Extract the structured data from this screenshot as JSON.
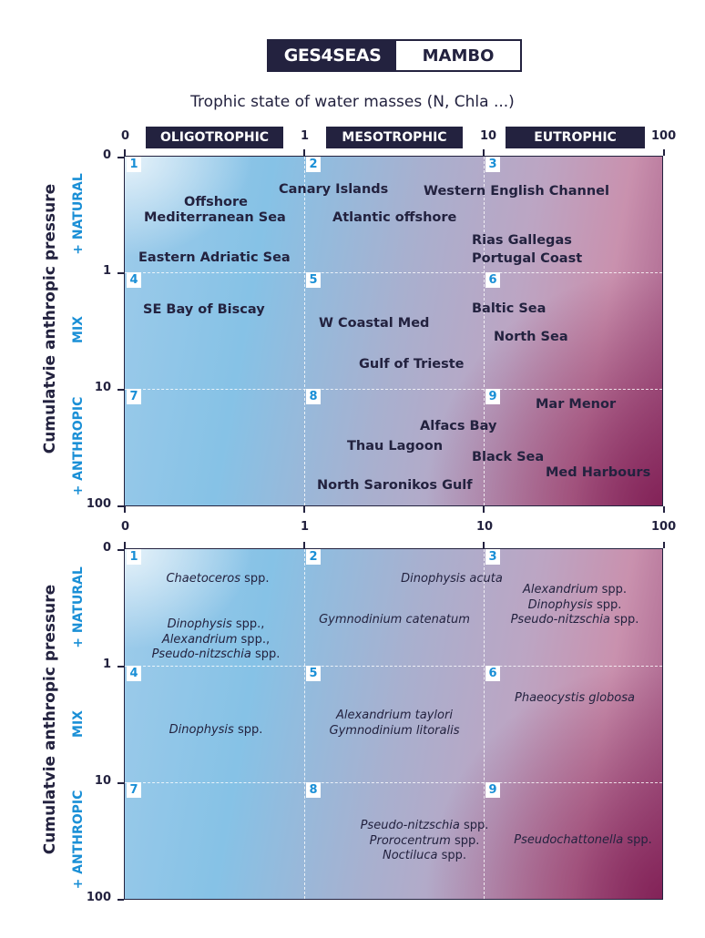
{
  "logo": {
    "left": "GES4SEAS",
    "right": "MAMBO"
  },
  "x_title": "Trophic state of water masses  (N, Chla ...)",
  "categories": [
    "OLIGOTROPHIC",
    "MESOTROPHIC",
    "EUTROPHIC"
  ],
  "x_ticks": [
    "0",
    "1",
    "10",
    "100"
  ],
  "y_ticks": [
    "0",
    "1",
    "10",
    "100"
  ],
  "y_title": "Cumulatvie anthropic pressure",
  "zones": [
    "+ NATURAL",
    "MIX",
    "+ ANTHROPIC"
  ],
  "cells": [
    "1",
    "2",
    "3",
    "4",
    "5",
    "6",
    "7",
    "8",
    "9"
  ],
  "colors": {
    "navy": "#23223f",
    "accent_blue": "#1a8fd6",
    "oligo": "#86c2e6",
    "eutro": "#8a2a5e"
  },
  "sites": [
    "Offshore",
    "Mediterranean Sea",
    "Eastern Adriatic Sea",
    "Canary Islands",
    "Atlantic offshore",
    "Western English Channel",
    "Rias Gallegas",
    "Portugal Coast",
    "SE Bay of Biscay",
    "W Coastal Med",
    "Gulf of Trieste",
    "Baltic Sea",
    "North Sea",
    "Mar Menor",
    "Alfacs Bay",
    "Thau Lagoon",
    "Black Sea",
    "Med Harbours",
    "North Saronikos Gulf"
  ],
  "species": [
    {
      "cell": "1",
      "lines": [
        [
          "Chaetoceros",
          " spp."
        ]
      ]
    },
    {
      "cell": "1",
      "lines": [
        [
          "Dinophysis",
          " spp.,"
        ],
        [
          "Alexandrium",
          " spp.,"
        ],
        [
          "Pseudo-nitzschia",
          " spp."
        ]
      ]
    },
    {
      "cell": "2",
      "lines": [
        [
          "Dinophysis acuta",
          ""
        ]
      ]
    },
    {
      "cell": "2",
      "lines": [
        [
          "Gymnodinium catenatum",
          ""
        ]
      ]
    },
    {
      "cell": "3",
      "lines": [
        [
          "Alexandrium",
          " spp."
        ],
        [
          "Dinophysis",
          " spp."
        ],
        [
          "Pseudo-nitzschia",
          " spp."
        ]
      ]
    },
    {
      "cell": "4",
      "lines": [
        [
          "Dinophysis",
          " spp."
        ]
      ]
    },
    {
      "cell": "5",
      "lines": [
        [
          "Alexandrium taylori",
          ""
        ],
        [
          "Gymnodinium litoralis",
          ""
        ]
      ]
    },
    {
      "cell": "6",
      "lines": [
        [
          "Phaeocystis globosa",
          ""
        ]
      ]
    },
    {
      "cell": "8",
      "lines": [
        [
          "Pseudo-nitzschia",
          " spp."
        ],
        [
          "Prorocentrum",
          " spp."
        ],
        [
          "Noctiluca",
          " spp."
        ]
      ]
    },
    {
      "cell": "9",
      "lines": [
        [
          "Pseudochattonella",
          " spp."
        ]
      ]
    }
  ]
}
